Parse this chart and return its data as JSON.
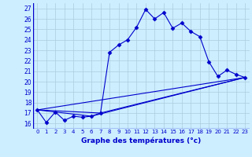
{
  "xlabel": "Graphe des températures (°c)",
  "bg_color": "#cceeff",
  "line_color": "#0000cc",
  "grid_color": "#aaccdd",
  "ylim": [
    15.5,
    27.5
  ],
  "xlim": [
    -0.5,
    23.5
  ],
  "yticks": [
    16,
    17,
    18,
    19,
    20,
    21,
    22,
    23,
    24,
    25,
    26,
    27
  ],
  "xticks": [
    0,
    1,
    2,
    3,
    4,
    5,
    6,
    7,
    8,
    9,
    10,
    11,
    12,
    13,
    14,
    15,
    16,
    17,
    18,
    19,
    20,
    21,
    22,
    23
  ],
  "series": [
    {
      "x": [
        0,
        1,
        2,
        3,
        4,
        5,
        6,
        7,
        8,
        9,
        10,
        11,
        12,
        13,
        14,
        15,
        16,
        17,
        18,
        19,
        20,
        21,
        22,
        23
      ],
      "y": [
        17.3,
        16.1,
        17.1,
        16.3,
        16.7,
        16.6,
        16.7,
        17.0,
        22.8,
        23.5,
        24.0,
        25.2,
        26.9,
        26.0,
        26.6,
        25.1,
        25.6,
        24.8,
        24.3,
        21.9,
        20.5,
        21.1,
        20.7,
        20.4
      ],
      "marker": "D",
      "markersize": 2.5
    },
    {
      "x": [
        0,
        23
      ],
      "y": [
        17.3,
        20.4
      ],
      "marker": null
    },
    {
      "x": [
        0,
        7,
        23
      ],
      "y": [
        17.3,
        17.0,
        20.4
      ],
      "marker": null
    },
    {
      "x": [
        0,
        6,
        23
      ],
      "y": [
        17.3,
        16.7,
        20.4
      ],
      "marker": null
    }
  ]
}
